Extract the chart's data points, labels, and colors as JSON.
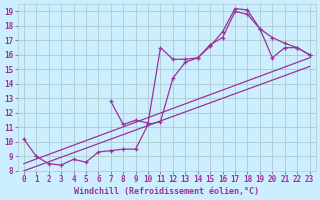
{
  "xlabel": "Windchill (Refroidissement éolien,°C)",
  "bg_color": "#cceeff",
  "grid_color": "#aacccc",
  "line_color": "#993399",
  "xlim": [
    -0.5,
    23.5
  ],
  "ylim": [
    8,
    19.5
  ],
  "xticks": [
    0,
    1,
    2,
    3,
    4,
    5,
    6,
    7,
    8,
    9,
    10,
    11,
    12,
    13,
    14,
    15,
    16,
    17,
    18,
    19,
    20,
    21,
    22,
    23
  ],
  "yticks": [
    8,
    9,
    10,
    11,
    12,
    13,
    14,
    15,
    16,
    17,
    18,
    19
  ],
  "series1_x": [
    0,
    1,
    2,
    3,
    4,
    5,
    6,
    7,
    8,
    9,
    10,
    11,
    12,
    13,
    14,
    15,
    16,
    17,
    18,
    19,
    20,
    21,
    22,
    23
  ],
  "series1_y": [
    10.2,
    9.0,
    8.5,
    8.4,
    8.8,
    8.6,
    9.3,
    9.4,
    9.5,
    9.5,
    11.2,
    11.4,
    14.4,
    15.5,
    15.8,
    16.6,
    17.6,
    19.2,
    19.1,
    17.8,
    17.2,
    16.8,
    16.5,
    16.0
  ],
  "series2_x": [
    7,
    8,
    9,
    10,
    11,
    12,
    13,
    14,
    15,
    16,
    17,
    18,
    19,
    20,
    21,
    22,
    23
  ],
  "series2_y": [
    12.8,
    11.2,
    11.5,
    11.3,
    16.5,
    15.7,
    15.7,
    15.8,
    16.7,
    17.2,
    19.0,
    18.8,
    17.8,
    15.8,
    16.5,
    16.5,
    16.0
  ],
  "series3_x": [
    0,
    23
  ],
  "series3_y": [
    8.5,
    15.8
  ],
  "series4_x": [
    0,
    23
  ],
  "series4_y": [
    8.0,
    15.2
  ],
  "tick_fontsize": 5.5,
  "xlabel_fontsize": 6.0
}
